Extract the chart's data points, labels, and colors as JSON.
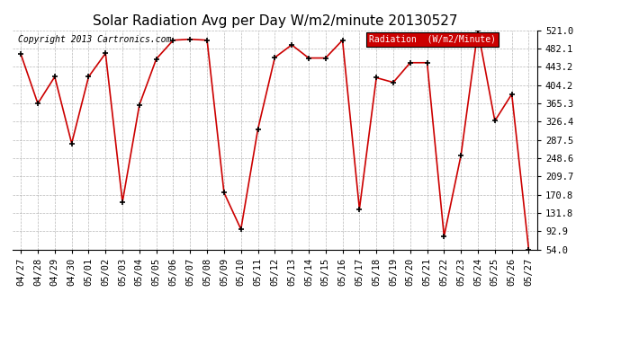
{
  "title": "Solar Radiation Avg per Day W/m2/minute 20130527",
  "copyright": "Copyright 2013 Cartronics.com",
  "legend_label": "Radiation  (W/m2/Minute)",
  "dates": [
    "04/27",
    "04/28",
    "04/29",
    "04/30",
    "05/01",
    "05/02",
    "05/03",
    "05/04",
    "05/05",
    "05/06",
    "05/07",
    "05/08",
    "05/09",
    "05/10",
    "05/11",
    "05/12",
    "05/13",
    "05/14",
    "05/15",
    "05/16",
    "05/17",
    "05/18",
    "05/19",
    "05/20",
    "05/21",
    "05/22",
    "05/23",
    "05/24",
    "05/25",
    "05/26",
    "05/27"
  ],
  "values": [
    470.0,
    365.0,
    422.0,
    280.0,
    422.0,
    472.0,
    155.0,
    362.0,
    460.0,
    500.0,
    502.0,
    500.0,
    175.0,
    97.0,
    310.0,
    463.0,
    490.0,
    462.0,
    462.0,
    500.0,
    140.0,
    420.0,
    410.0,
    452.0,
    452.0,
    82.0,
    255.0,
    521.0,
    328.0,
    385.0,
    54.0
  ],
  "yticks": [
    54.0,
    92.9,
    131.8,
    170.8,
    209.7,
    248.6,
    287.5,
    326.4,
    365.3,
    404.2,
    443.2,
    482.1,
    521.0
  ],
  "ylim": [
    54.0,
    521.0
  ],
  "line_color": "#cc0000",
  "marker_color": "#000000",
  "bg_color": "#ffffff",
  "grid_color": "#999999",
  "legend_bg": "#cc0000",
  "legend_text_color": "#ffffff",
  "title_fontsize": 11,
  "tick_fontsize": 7.5,
  "copyright_fontsize": 7
}
